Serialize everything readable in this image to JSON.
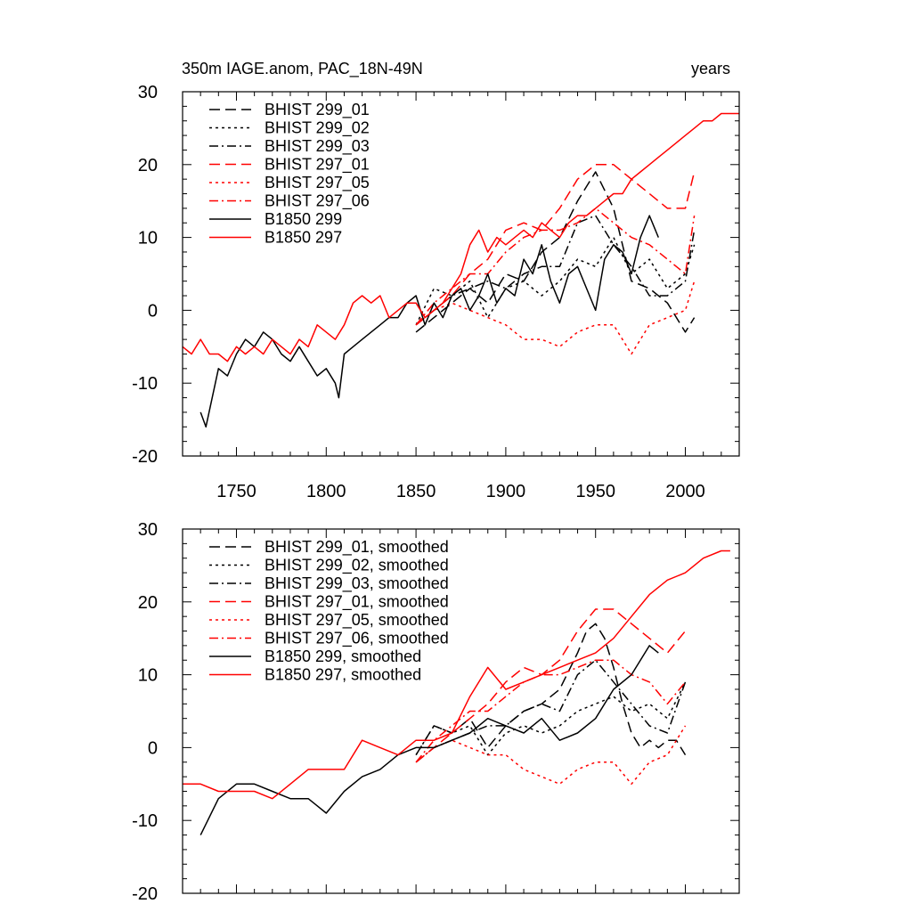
{
  "colors": {
    "black": "#000000",
    "red": "#ff0000"
  },
  "chart_data": [
    {
      "type": "line",
      "title": "350m IAGE.anom, PAC_18N-49N",
      "subtitle_right": "years",
      "xlim": [
        1720,
        2030
      ],
      "ylim": [
        -20,
        30
      ],
      "xticks": [
        1750,
        1800,
        1850,
        1900,
        1950,
        2000
      ],
      "xtick_labels": [
        "1750",
        "1800",
        "1850",
        "1900",
        "1950",
        "2000"
      ],
      "yticks": [
        -20,
        -10,
        0,
        10,
        20,
        30
      ],
      "ytick_labels": [
        "-20",
        "-10",
        "0",
        "10",
        "20",
        "30"
      ],
      "legend_position": "top-left",
      "series": [
        {
          "name": "BHIST 299_01",
          "color": "black",
          "dash": "dash",
          "x": [
            1850,
            1860,
            1870,
            1880,
            1890,
            1900,
            1910,
            1920,
            1930,
            1940,
            1950,
            1960,
            1970,
            1980,
            1990,
            2000,
            2005
          ],
          "y": [
            -3,
            -1,
            1,
            3,
            1,
            5,
            4,
            8,
            10,
            15,
            19,
            14,
            4,
            3,
            1,
            -3,
            -1
          ]
        },
        {
          "name": "BHIST 299_02",
          "color": "black",
          "dash": "dot",
          "x": [
            1850,
            1860,
            1870,
            1880,
            1890,
            1900,
            1910,
            1920,
            1930,
            1940,
            1950,
            1960,
            1970,
            1980,
            1990,
            2000,
            2005
          ],
          "y": [
            -2,
            3,
            2,
            4,
            -1,
            3,
            4,
            2,
            4,
            7,
            6,
            10,
            5,
            7,
            3,
            5,
            9
          ]
        },
        {
          "name": "BHIST 299_03",
          "color": "black",
          "dash": "dashdot",
          "x": [
            1850,
            1860,
            1870,
            1880,
            1890,
            1900,
            1910,
            1920,
            1930,
            1940,
            1950,
            1960,
            1970,
            1980,
            1990,
            2000,
            2005
          ],
          "y": [
            -2,
            0,
            2,
            3,
            4,
            3,
            5,
            6,
            6,
            12,
            13,
            9,
            6,
            2,
            2,
            4,
            11
          ]
        },
        {
          "name": "BHIST 297_01",
          "color": "red",
          "dash": "dash",
          "x": [
            1850,
            1860,
            1870,
            1880,
            1890,
            1900,
            1910,
            1920,
            1930,
            1940,
            1950,
            1960,
            1970,
            1980,
            1990,
            2000,
            2005
          ],
          "y": [
            -2,
            0,
            2,
            5,
            7,
            11,
            12,
            11,
            14,
            18,
            20,
            20,
            18,
            16,
            14,
            14,
            19
          ]
        },
        {
          "name": "BHIST 297_05",
          "color": "red",
          "dash": "dot",
          "x": [
            1850,
            1860,
            1870,
            1880,
            1890,
            1900,
            1910,
            1920,
            1930,
            1940,
            1950,
            1960,
            1970,
            1980,
            1990,
            2000,
            2005
          ],
          "y": [
            -2,
            0,
            1,
            0,
            -1,
            -2,
            -4,
            -4,
            -5,
            -3,
            -2,
            -2,
            -6,
            -2,
            -1,
            0,
            4
          ]
        },
        {
          "name": "BHIST 297_06",
          "color": "red",
          "dash": "dashdot",
          "x": [
            1850,
            1860,
            1870,
            1880,
            1890,
            1900,
            1910,
            1920,
            1930,
            1940,
            1950,
            1960,
            1970,
            1980,
            1990,
            2000,
            2005
          ],
          "y": [
            -2,
            1,
            3,
            5,
            5,
            8,
            10,
            11,
            11,
            12,
            14,
            12,
            10,
            9,
            7,
            5,
            13
          ]
        },
        {
          "name": "B1850 299",
          "color": "black",
          "dash": "solid",
          "x": [
            1730,
            1733,
            1740,
            1745,
            1750,
            1755,
            1760,
            1765,
            1770,
            1775,
            1780,
            1785,
            1790,
            1795,
            1800,
            1805,
            1807,
            1810,
            1815,
            1820,
            1825,
            1830,
            1835,
            1840,
            1845,
            1850,
            1855,
            1860,
            1865,
            1870,
            1875,
            1880,
            1885,
            1890,
            1895,
            1900,
            1905,
            1910,
            1915,
            1920,
            1925,
            1930,
            1935,
            1940,
            1945,
            1950,
            1955,
            1960,
            1965,
            1970,
            1975,
            1980,
            1985
          ],
          "y": [
            -14,
            -16,
            -8,
            -9,
            -6,
            -4,
            -5,
            -3,
            -4,
            -6,
            -7,
            -5,
            -7,
            -9,
            -8,
            -10,
            -12,
            -6,
            -5,
            -4,
            -3,
            -2,
            -1,
            -1,
            1,
            2,
            -2,
            1,
            -1,
            2,
            3,
            0,
            2,
            5,
            1,
            3,
            2,
            7,
            5,
            9,
            4,
            1,
            5,
            6,
            3,
            0,
            7,
            9,
            8,
            5,
            10,
            13,
            10
          ]
        },
        {
          "name": "B1850 297",
          "color": "red",
          "dash": "solid",
          "x": [
            1720,
            1725,
            1730,
            1735,
            1740,
            1745,
            1750,
            1755,
            1760,
            1765,
            1770,
            1775,
            1780,
            1785,
            1790,
            1795,
            1800,
            1805,
            1810,
            1815,
            1820,
            1825,
            1830,
            1835,
            1840,
            1845,
            1850,
            1855,
            1860,
            1865,
            1870,
            1875,
            1880,
            1885,
            1890,
            1895,
            1900,
            1905,
            1910,
            1915,
            1920,
            1925,
            1930,
            1935,
            1940,
            1945,
            1950,
            1955,
            1960,
            1965,
            1970,
            1975,
            1980,
            1985,
            1990,
            1995,
            2000,
            2005,
            2010,
            2015,
            2020,
            2025,
            2030
          ],
          "y": [
            -5,
            -6,
            -4,
            -6,
            -6,
            -7,
            -5,
            -6,
            -5,
            -6,
            -4,
            -5,
            -6,
            -4,
            -5,
            -2,
            -3,
            -4,
            -2,
            1,
            2,
            1,
            2,
            -1,
            0,
            1,
            1,
            -1,
            0,
            1,
            3,
            5,
            9,
            11,
            8,
            10,
            9,
            10,
            11,
            10,
            12,
            11,
            10,
            12,
            13,
            13,
            14,
            15,
            16,
            16,
            18,
            19,
            20,
            21,
            22,
            23,
            24,
            25,
            26,
            26,
            27,
            27,
            27
          ]
        }
      ]
    },
    {
      "type": "line",
      "title": "",
      "xlim": [
        1720,
        2030
      ],
      "ylim": [
        -20,
        30
      ],
      "xticks": [
        1750,
        1800,
        1850,
        1900,
        1950,
        2000
      ],
      "yticks": [
        -20,
        -10,
        0,
        10,
        20,
        30
      ],
      "ytick_labels": [
        "-20",
        "-10",
        "0",
        "10",
        "20",
        "30"
      ],
      "legend_position": "top-left",
      "series": [
        {
          "name": "BHIST 299_01, smoothed",
          "color": "black",
          "dash": "dash",
          "x": [
            1850,
            1860,
            1870,
            1880,
            1890,
            1900,
            1910,
            1920,
            1930,
            1940,
            1945,
            1950,
            1955,
            1960,
            1965,
            1970,
            1975,
            1980,
            1985,
            1990,
            1995,
            2000
          ],
          "y": [
            -1,
            3,
            2,
            4,
            0,
            3,
            5,
            6,
            8,
            13,
            16,
            17,
            15,
            11,
            6,
            2,
            0,
            1,
            0,
            1,
            1,
            -1
          ]
        },
        {
          "name": "BHIST 299_02, smoothed",
          "color": "black",
          "dash": "dot",
          "x": [
            1850,
            1860,
            1870,
            1880,
            1890,
            1900,
            1910,
            1920,
            1930,
            1940,
            1950,
            1960,
            1970,
            1980,
            1990,
            2000
          ],
          "y": [
            -1,
            3,
            2,
            3,
            -1,
            2,
            3,
            2,
            3,
            5,
            6,
            7,
            5,
            6,
            4,
            9
          ]
        },
        {
          "name": "BHIST 299_03, smoothed",
          "color": "black",
          "dash": "dashdot",
          "x": [
            1850,
            1860,
            1870,
            1880,
            1890,
            1900,
            1910,
            1920,
            1930,
            1940,
            1950,
            1960,
            1970,
            1980,
            1990,
            2000
          ],
          "y": [
            -2,
            0,
            1,
            2,
            3,
            3,
            5,
            6,
            5,
            10,
            12,
            9,
            6,
            3,
            2,
            9
          ]
        },
        {
          "name": "BHIST 297_01, smoothed",
          "color": "red",
          "dash": "dash",
          "x": [
            1850,
            1860,
            1870,
            1880,
            1890,
            1900,
            1910,
            1920,
            1930,
            1940,
            1950,
            1960,
            1970,
            1980,
            1990,
            2000
          ],
          "y": [
            -2,
            0,
            2,
            4,
            6,
            9,
            11,
            10,
            12,
            16,
            19,
            19,
            17,
            15,
            13,
            16
          ]
        },
        {
          "name": "BHIST 297_05, smoothed",
          "color": "red",
          "dash": "dot",
          "x": [
            1850,
            1860,
            1870,
            1880,
            1890,
            1900,
            1910,
            1920,
            1930,
            1940,
            1950,
            1960,
            1970,
            1980,
            1990,
            2000
          ],
          "y": [
            -2,
            0,
            1,
            0,
            -1,
            -1,
            -3,
            -4,
            -5,
            -3,
            -2,
            -2,
            -5,
            -2,
            -1,
            3
          ]
        },
        {
          "name": "BHIST 297_06, smoothed",
          "color": "red",
          "dash": "dashdot",
          "x": [
            1850,
            1860,
            1870,
            1880,
            1890,
            1900,
            1910,
            1920,
            1930,
            1940,
            1950,
            1960,
            1970,
            1980,
            1990,
            2000
          ],
          "y": [
            -2,
            1,
            3,
            5,
            5,
            7,
            9,
            10,
            10,
            11,
            12,
            12,
            10,
            9,
            6,
            9
          ]
        },
        {
          "name": "B1850 299, smoothed",
          "color": "black",
          "dash": "solid",
          "x": [
            1730,
            1740,
            1750,
            1760,
            1770,
            1780,
            1790,
            1795,
            1800,
            1810,
            1820,
            1830,
            1840,
            1850,
            1860,
            1870,
            1880,
            1890,
            1900,
            1910,
            1920,
            1930,
            1940,
            1950,
            1960,
            1970,
            1980,
            1985
          ],
          "y": [
            -12,
            -7,
            -5,
            -5,
            -6,
            -7,
            -7,
            -8,
            -9,
            -6,
            -4,
            -3,
            -1,
            0,
            0,
            1,
            2,
            4,
            3,
            2,
            4,
            1,
            2,
            4,
            8,
            10,
            14,
            13
          ]
        },
        {
          "name": "B1850 297, smoothed",
          "color": "red",
          "dash": "solid",
          "x": [
            1720,
            1730,
            1740,
            1750,
            1760,
            1770,
            1780,
            1790,
            1800,
            1810,
            1820,
            1830,
            1840,
            1850,
            1860,
            1870,
            1880,
            1890,
            1900,
            1910,
            1920,
            1930,
            1940,
            1950,
            1960,
            1970,
            1980,
            1990,
            2000,
            2010,
            2020,
            2025
          ],
          "y": [
            -5,
            -5,
            -6,
            -6,
            -6,
            -7,
            -5,
            -3,
            -3,
            -3,
            1,
            0,
            -1,
            1,
            1,
            2,
            7,
            11,
            8,
            9,
            10,
            11,
            12,
            13,
            15,
            18,
            21,
            23,
            24,
            26,
            27,
            27
          ]
        }
      ]
    }
  ]
}
